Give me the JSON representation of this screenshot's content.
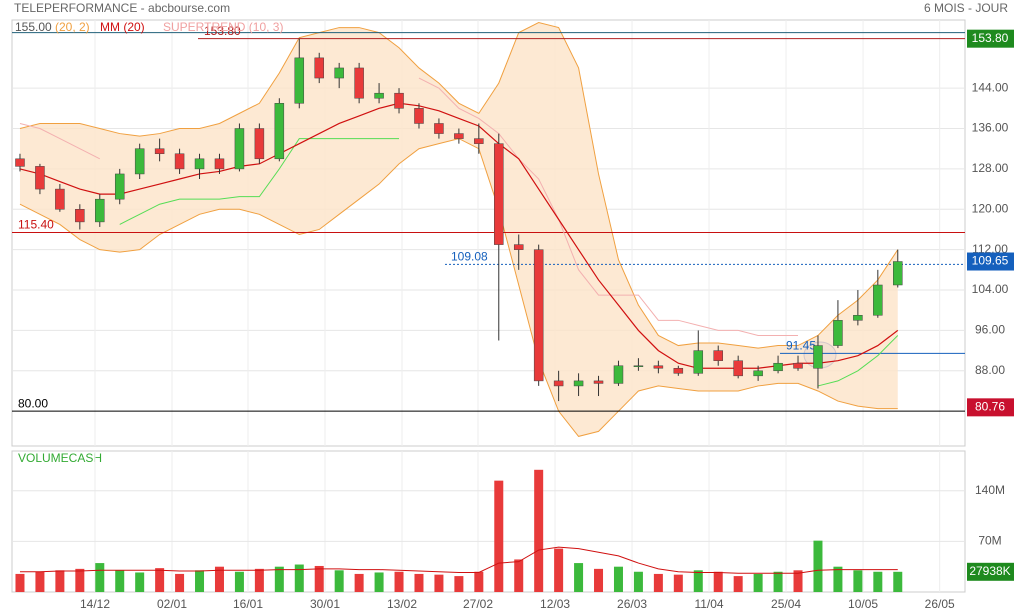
{
  "chart_data": {
    "type": "candlestick",
    "title": "TELEPERFORMANCE - abcbourse.com",
    "period": "6 MOIS - JOUR",
    "legend": [
      {
        "label": "155.00",
        "color": "#555555"
      },
      {
        "label": "(20, 2)",
        "color": "#f0a040"
      },
      {
        "label": "MM (20)",
        "color": "#d01010"
      },
      {
        "label": "SUPERTREND (10, 3)",
        "color": "#f0a0a0"
      }
    ],
    "up_color": "#3cb93c",
    "down_color": "#e83a3a",
    "open": [
      130,
      128.5,
      124,
      120,
      117.5,
      122,
      127,
      132,
      131,
      128,
      130,
      128,
      136,
      130,
      141,
      150,
      146,
      148,
      142,
      143,
      140,
      137,
      135,
      134,
      133,
      113,
      112,
      86,
      85,
      86,
      85.5,
      89,
      89,
      88.5,
      87.5,
      92,
      90,
      87,
      88,
      89.5,
      88.5,
      93,
      98,
      99,
      105
    ],
    "high": [
      131,
      129,
      125,
      121,
      123,
      128,
      133,
      134,
      132,
      131,
      131,
      137,
      137,
      142,
      153.8,
      151,
      149,
      149,
      145,
      144,
      141,
      138,
      136,
      137,
      135,
      115,
      113,
      88,
      87.5,
      87,
      90,
      90.5,
      90,
      89,
      96,
      93,
      91,
      89,
      91,
      91,
      95,
      102,
      104,
      108,
      112
    ],
    "low": [
      127.5,
      123,
      119.5,
      116,
      116.5,
      121,
      126,
      129.5,
      127,
      126,
      127,
      127.5,
      129,
      129.5,
      140,
      145,
      144,
      141,
      141,
      139,
      136,
      134,
      133,
      131,
      94,
      108,
      85,
      82,
      83,
      83,
      85,
      88,
      87.5,
      87,
      87,
      89,
      86.5,
      86,
      87.5,
      88,
      84.5,
      92.5,
      97,
      98.5,
      104.5
    ],
    "close": [
      128.5,
      124,
      120,
      117.5,
      122,
      127,
      132,
      131,
      128,
      130,
      128,
      136,
      130,
      141,
      150,
      146,
      148,
      142,
      143,
      140,
      137,
      135,
      134,
      133,
      113,
      112,
      86,
      85,
      86,
      85.5,
      89,
      89,
      88.5,
      87.5,
      92,
      90,
      87,
      88,
      89.5,
      88.5,
      93,
      98,
      99,
      105,
      109.65
    ],
    "ma": {
      "color": "#d01010",
      "values": [
        128,
        127,
        125.5,
        124,
        123,
        123,
        124,
        125,
        126,
        127,
        127.5,
        128.5,
        129,
        131,
        133,
        135,
        137,
        138.5,
        140,
        141,
        140.5,
        139.5,
        138,
        136.5,
        133,
        130,
        124,
        118,
        112,
        106,
        101,
        96,
        92,
        89.5,
        88.5,
        88.5,
        88.5,
        88.5,
        89,
        89.5,
        89.5,
        90,
        91,
        93,
        96
      ]
    },
    "bands": {
      "color": "#f0a040",
      "fill": "#fde3c8",
      "upper": [
        136,
        137,
        137,
        137,
        136,
        135,
        134.5,
        135,
        136,
        136,
        137,
        139,
        141,
        147,
        154,
        155,
        156,
        156,
        155,
        152,
        148,
        145,
        141,
        139,
        145,
        155,
        157,
        156,
        148,
        127,
        110,
        101,
        95,
        93,
        93.5,
        93.5,
        93,
        92.5,
        93,
        93,
        95,
        99,
        102,
        106,
        112
      ],
      "lower": [
        121,
        119,
        117,
        114,
        112,
        111.5,
        112,
        115,
        117,
        119,
        120,
        120,
        119,
        117,
        115,
        116,
        119,
        122,
        125,
        129,
        132,
        133,
        134,
        132,
        120,
        105,
        90,
        80,
        75,
        76,
        80,
        84,
        85,
        84.5,
        84,
        84,
        84,
        85,
        85.5,
        85.5,
        84,
        82,
        81,
        80.5,
        80.5
      ]
    },
    "supertrend": {
      "values": [
        137,
        136,
        134,
        132,
        130,
        117,
        119,
        121,
        122,
        122,
        122,
        122.5,
        122.5,
        128,
        134,
        134,
        134,
        134,
        134,
        134,
        146,
        144,
        140,
        138,
        135,
        130,
        126,
        118,
        108,
        103,
        103,
        103,
        98,
        98,
        97,
        96,
        96,
        95,
        95,
        95,
        85,
        86,
        88,
        91,
        95
      ],
      "colors": [
        "#f3b0b0",
        "#f3b0b0",
        "#f3b0b0",
        "#f3b0b0",
        "#f3b0b0",
        "#55dd55",
        "#55dd55",
        "#55dd55",
        "#55dd55",
        "#55dd55",
        "#55dd55",
        "#55dd55",
        "#55dd55",
        "#55dd55",
        "#55dd55",
        "#55dd55",
        "#55dd55",
        "#55dd55",
        "#55dd55",
        "#55dd55",
        "#f3b0b0",
        "#f3b0b0",
        "#f3b0b0",
        "#f3b0b0",
        "#f3b0b0",
        "#f3b0b0",
        "#f3b0b0",
        "#f3b0b0",
        "#f3b0b0",
        "#f3b0b0",
        "#f3b0b0",
        "#f3b0b0",
        "#f3b0b0",
        "#f3b0b0",
        "#f3b0b0",
        "#f3b0b0",
        "#f3b0b0",
        "#f3b0b0",
        "#f3b0b0",
        "#f3b0b0",
        "#55dd55",
        "#55dd55",
        "#55dd55",
        "#55dd55",
        "#55dd55"
      ]
    },
    "ylim": [
      73.1,
      157.5
    ],
    "yticks": [
      {
        "value": 144,
        "label": "144.00"
      },
      {
        "value": 136,
        "label": "136.00"
      },
      {
        "value": 128,
        "label": "128.00"
      },
      {
        "value": 120,
        "label": "120.00"
      },
      {
        "value": 112,
        "label": "112.00"
      },
      {
        "value": 104,
        "label": "104.00"
      },
      {
        "value": 96,
        "label": "96.00"
      },
      {
        "value": 88,
        "label": "88.00"
      }
    ],
    "xlim": [
      -0.4,
      47.37
    ],
    "xticks": [
      {
        "value": 3.76,
        "label": "14/12"
      },
      {
        "value": 7.62,
        "label": "02/01"
      },
      {
        "value": 11.43,
        "label": "16/01"
      },
      {
        "value": 15.29,
        "label": "30/01"
      },
      {
        "value": 19.15,
        "label": "13/02"
      },
      {
        "value": 22.96,
        "label": "27/02"
      },
      {
        "value": 26.82,
        "label": "12/03"
      },
      {
        "value": 30.68,
        "label": "26/03"
      },
      {
        "value": 34.54,
        "label": "11/04"
      },
      {
        "value": 38.4,
        "label": "25/04"
      },
      {
        "value": 42.26,
        "label": "10/05"
      },
      {
        "value": 46.1,
        "label": "26/05"
      }
    ],
    "hlines": [
      {
        "value": 155,
        "label": "155.00",
        "color": "#20607a"
      },
      {
        "value": 153.8,
        "label": "153.80",
        "color": "#b02020"
      },
      {
        "value": 115.4,
        "label": "115.40",
        "color": "#c81010"
      },
      {
        "value": 109.08,
        "label": "109.08",
        "color": "#1560bd",
        "dotted": true
      },
      {
        "value": 91.45,
        "label": "91.45",
        "color": "#1560bd"
      },
      {
        "value": 80,
        "label": "80.00",
        "color": "#000000"
      }
    ],
    "price_labels": [
      {
        "value": 153.8,
        "label": "153.80",
        "color": "#1e8a1e"
      },
      {
        "value": 109.65,
        "label": "109.65",
        "color": "#1560bd"
      },
      {
        "value": 80.76,
        "label": "80.76",
        "color": "#c8102e"
      }
    ],
    "volume": {
      "title": "VOLUMECASH",
      "values": [
        25,
        28,
        30,
        32,
        40,
        30,
        27,
        33,
        25,
        30,
        35,
        28,
        32,
        35,
        38,
        36,
        30,
        25,
        27,
        28,
        25,
        24,
        22,
        28,
        154,
        45,
        169,
        60,
        40,
        32,
        35,
        28,
        25,
        24,
        30,
        28,
        22,
        25,
        28,
        30,
        71,
        35,
        30,
        28,
        27.938
      ],
      "ma": [
        28,
        28,
        29,
        29,
        30,
        30,
        30,
        30,
        29,
        29,
        30,
        30,
        30,
        31,
        31,
        32,
        32,
        31,
        31,
        30,
        29,
        28,
        27,
        27,
        40,
        42,
        58,
        62,
        60,
        55,
        50,
        40,
        32,
        28,
        27,
        27,
        26,
        26,
        26,
        26,
        30,
        31,
        31,
        31,
        31
      ],
      "ylim": [
        0,
        195
      ],
      "yticks": [
        {
          "value": 70,
          "label": "70M"
        },
        {
          "value": 140,
          "label": "140M"
        }
      ],
      "last_label": {
        "value": 27.938,
        "label": "27938K",
        "color": "#1e8a1e"
      }
    }
  }
}
